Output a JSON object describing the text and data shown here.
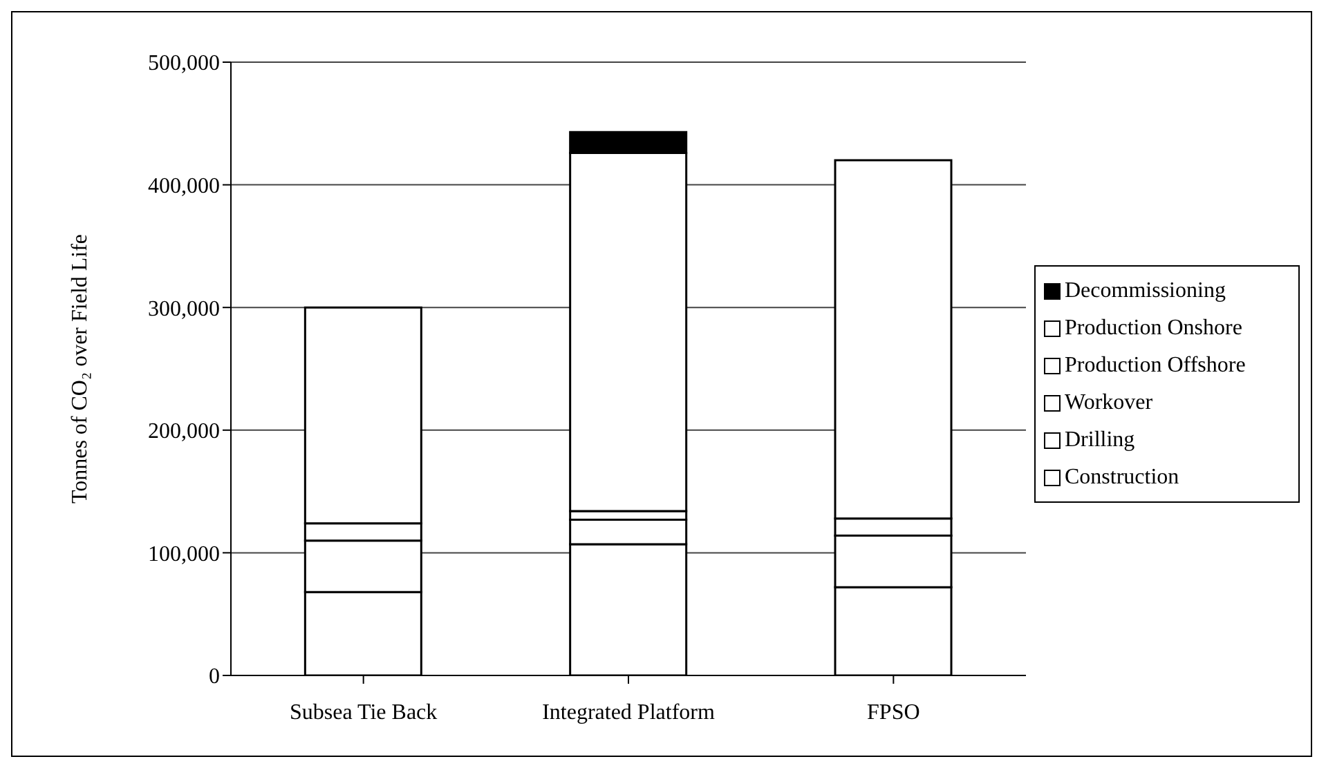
{
  "chart_data": {
    "type": "bar",
    "stacked": true,
    "ylabel": "Tonnes of CO₂ over Field Life",
    "categories": [
      "Subsea Tie Back",
      "Integrated Platform",
      "FPSO"
    ],
    "series": [
      {
        "name": "Construction",
        "color": "#ffffff",
        "values": [
          68000,
          107000,
          72000
        ]
      },
      {
        "name": "Drilling",
        "color": "#ffffff",
        "values": [
          42000,
          20000,
          42000
        ]
      },
      {
        "name": "Workover",
        "color": "#ffffff",
        "values": [
          14000,
          7000,
          14000
        ]
      },
      {
        "name": "Production Offshore",
        "color": "#ffffff",
        "values": [
          176000,
          292000,
          292000
        ]
      },
      {
        "name": "Production Onshore",
        "color": "#ffffff",
        "values": [
          0,
          0,
          0
        ]
      },
      {
        "name": "Decommissioning",
        "color": "#000000",
        "values": [
          0,
          17000,
          0
        ]
      }
    ],
    "ylim": [
      0,
      500000
    ],
    "yticks": [
      0,
      {
        "value": 100000,
        "label": "100,000"
      },
      {
        "value": 200000,
        "label": "200,000"
      },
      {
        "value": 300000,
        "label": "300,000"
      },
      {
        "value": 400000,
        "label": "400,000"
      },
      {
        "value": 500000,
        "label": "500,000"
      }
    ],
    "grid": "y",
    "legend": "right"
  }
}
